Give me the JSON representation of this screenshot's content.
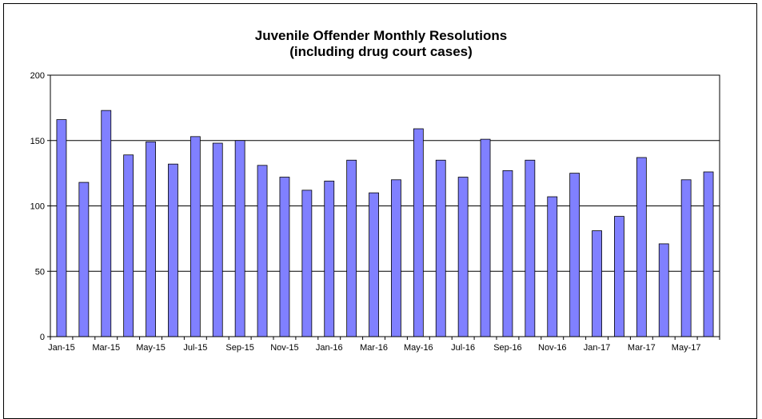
{
  "chart_data": {
    "type": "bar",
    "title": "Juvenile Offender Monthly Resolutions",
    "subtitle": "(including drug court cases)",
    "xlabel": "",
    "ylabel": "",
    "ylim": [
      0,
      200
    ],
    "yticks": [
      0,
      50,
      100,
      150,
      200
    ],
    "grid": true,
    "legend": "none",
    "bar_color": "#8080ff",
    "categories": [
      "Jan-15",
      "Feb-15",
      "Mar-15",
      "Apr-15",
      "May-15",
      "Jun-15",
      "Jul-15",
      "Aug-15",
      "Sep-15",
      "Oct-15",
      "Nov-15",
      "Dec-15",
      "Jan-16",
      "Feb-16",
      "Mar-16",
      "Apr-16",
      "May-16",
      "Jun-16",
      "Jul-16",
      "Aug-16",
      "Sep-16",
      "Oct-16",
      "Nov-16",
      "Dec-16",
      "Jan-17",
      "Feb-17",
      "Mar-17",
      "Apr-17",
      "May-17",
      "Jun-17"
    ],
    "x_tick_labels": [
      "Jan-15",
      "Mar-15",
      "May-15",
      "Jul-15",
      "Sep-15",
      "Nov-15",
      "Jan-16",
      "Mar-16",
      "May-16",
      "Jul-16",
      "Sep-16",
      "Nov-16",
      "Jan-17",
      "Mar-17",
      "May-17"
    ],
    "values": [
      166,
      118,
      173,
      139,
      149,
      132,
      153,
      148,
      150,
      131,
      122,
      112,
      119,
      135,
      110,
      120,
      159,
      135,
      122,
      151,
      127,
      135,
      107,
      125,
      81,
      92,
      137,
      71,
      120,
      126
    ]
  }
}
